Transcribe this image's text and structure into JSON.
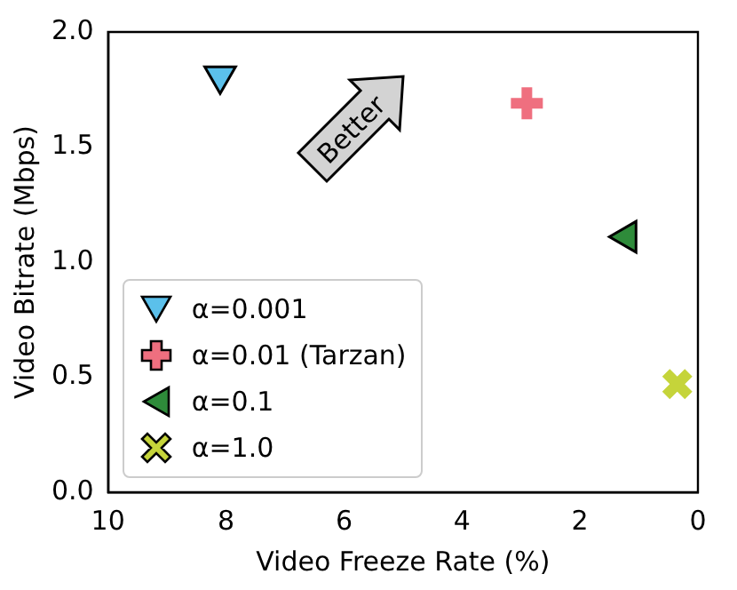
{
  "chart_data": {
    "type": "scatter",
    "xlabel": "Video Freeze Rate (%)",
    "ylabel": "Video Bitrate (Mbps)",
    "xlim": [
      10,
      0
    ],
    "xticks": [
      10,
      8,
      6,
      4,
      2,
      0
    ],
    "ylim": [
      0,
      2
    ],
    "yticks": [
      {
        "value": 0,
        "label": "0.0"
      },
      0.5,
      {
        "value": 1,
        "label": "1.0"
      },
      1.5,
      {
        "value": 2,
        "label": "2.0"
      }
    ],
    "legend": "bottom left",
    "grid": false,
    "annotations": [
      "Better"
    ],
    "series": [
      {
        "name": "α=0.001",
        "color": "#5bc0eb",
        "marker": "triangle_down",
        "x": [
          8.1
        ],
        "values": [
          1.81
        ]
      },
      {
        "name": "α=0.01 (Tarzan)",
        "color": "#ef6f7f",
        "marker": "plus",
        "x": [
          2.9
        ],
        "values": [
          1.69
        ]
      },
      {
        "name": "α=0.1",
        "color": "#2e8b3a",
        "marker": "triangle_left",
        "x": [
          1.2
        ],
        "values": [
          1.11
        ]
      },
      {
        "name": "α=1.0",
        "color": "#c5d43a",
        "marker": "x",
        "x": [
          0.35
        ],
        "values": [
          0.47
        ]
      }
    ]
  }
}
